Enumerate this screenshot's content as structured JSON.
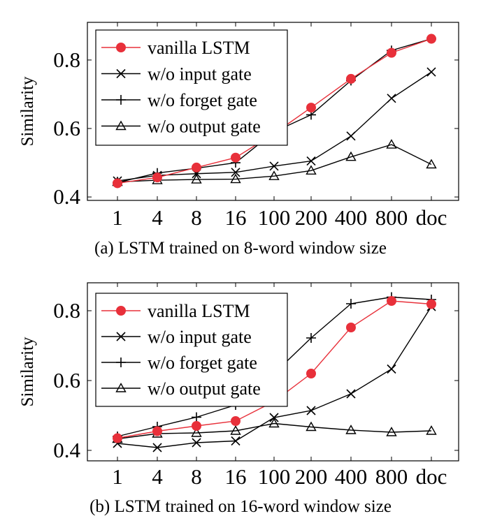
{
  "chart_data": [
    {
      "type": "line",
      "caption": "(a) LSTM trained on 8-word window size",
      "ylabel": "Similarity",
      "xlabel": "",
      "categories": [
        "1",
        "4",
        "8",
        "16",
        "100",
        "200",
        "400",
        "800",
        "doc"
      ],
      "ylim": [
        0.39,
        0.91
      ],
      "yticks": [
        "0.4",
        "0.6",
        "0.8"
      ],
      "ytick_values": [
        0.4,
        0.6,
        0.8
      ],
      "legend_position": "top-left",
      "colors": {
        "vanilla": "#e8303a",
        "other": "#000000"
      },
      "series": [
        {
          "name": "vanilla LSTM",
          "marker": "dot",
          "values": [
            0.44,
            0.457,
            0.486,
            0.515,
            0.585,
            0.661,
            0.745,
            0.821,
            0.862
          ]
        },
        {
          "name": "w/o input gate",
          "marker": "x",
          "values": [
            0.447,
            0.463,
            0.468,
            0.472,
            0.49,
            0.505,
            0.578,
            0.688,
            0.765
          ]
        },
        {
          "name": "w/o forget gate",
          "marker": "plus",
          "values": [
            0.442,
            0.47,
            0.484,
            0.5,
            0.59,
            0.64,
            0.74,
            0.828,
            0.862
          ]
        },
        {
          "name": "w/o output gate",
          "marker": "triangle",
          "values": [
            0.444,
            0.449,
            0.451,
            0.452,
            0.461,
            0.477,
            0.517,
            0.553,
            0.495
          ]
        }
      ]
    },
    {
      "type": "line",
      "caption": "(b) LSTM trained on 16-word window size",
      "ylabel": "Similarity",
      "xlabel": "",
      "categories": [
        "1",
        "4",
        "8",
        "16",
        "100",
        "200",
        "400",
        "800",
        "doc"
      ],
      "ylim": [
        0.37,
        0.88
      ],
      "yticks": [
        "0.4",
        "0.6",
        "0.8"
      ],
      "ytick_values": [
        0.4,
        0.6,
        0.8
      ],
      "legend_position": "top-left",
      "colors": {
        "vanilla": "#e8303a",
        "other": "#000000"
      },
      "series": [
        {
          "name": "vanilla LSTM",
          "marker": "dot",
          "values": [
            0.435,
            0.455,
            0.47,
            0.484,
            0.54,
            0.62,
            0.752,
            0.828,
            0.819
          ]
        },
        {
          "name": "w/o input gate",
          "marker": "x",
          "values": [
            0.42,
            0.408,
            0.422,
            0.427,
            0.494,
            0.514,
            0.562,
            0.633,
            0.812
          ]
        },
        {
          "name": "w/o forget gate",
          "marker": "plus",
          "values": [
            0.44,
            0.468,
            0.495,
            0.53,
            0.62,
            0.722,
            0.82,
            0.839,
            0.832
          ]
        },
        {
          "name": "w/o output gate",
          "marker": "triangle",
          "values": [
            0.433,
            0.448,
            0.45,
            0.456,
            0.477,
            0.467,
            0.458,
            0.452,
            0.456
          ]
        }
      ]
    }
  ]
}
